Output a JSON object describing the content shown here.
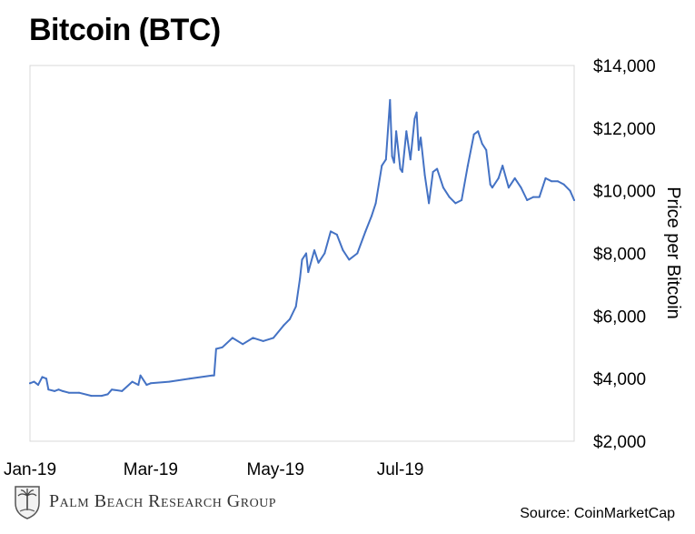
{
  "title": "Bitcoin (BTC)",
  "source": "Source: CoinMarketCap",
  "logo": {
    "text": "Palm Beach Research Group",
    "icon": "palm-tree-crest-icon"
  },
  "colors": {
    "line": "#4472C4",
    "frame": "#D9D9D9"
  },
  "chart_data": {
    "type": "line",
    "title": "Bitcoin (BTC)",
    "ylabel": "Price per Bitcoin",
    "xlabel": "",
    "ylim": [
      2000,
      14000
    ],
    "y_axis_side": "right",
    "y_ticks": [
      "$2,000",
      "$4,000",
      "$6,000",
      "$8,000",
      "$10,000",
      "$12,000",
      "$14,000"
    ],
    "y_tick_values": [
      2000,
      4000,
      6000,
      8000,
      10000,
      12000,
      14000
    ],
    "x_ticks": [
      "Jan-19",
      "Mar-19",
      "May-19",
      "Jul-19"
    ],
    "x_tick_dates": [
      "2019-01-01",
      "2019-03-01",
      "2019-05-01",
      "2019-07-01"
    ],
    "xlim": [
      "2019-01-01",
      "2019-09-24"
    ],
    "grid": false,
    "legend": "none",
    "series": [
      {
        "x": [
          "2019-01-01",
          "2019-01-03",
          "2019-01-05",
          "2019-01-07",
          "2019-01-09",
          "2019-01-10",
          "2019-01-13",
          "2019-01-15",
          "2019-01-17",
          "2019-01-20",
          "2019-01-25",
          "2019-01-31",
          "2019-02-05",
          "2019-02-08",
          "2019-02-10",
          "2019-02-15",
          "2019-02-20",
          "2019-02-23",
          "2019-02-24",
          "2019-02-27",
          "2019-03-01",
          "2019-03-10",
          "2019-03-20",
          "2019-03-31",
          "2019-04-01",
          "2019-04-02",
          "2019-04-05",
          "2019-04-10",
          "2019-04-15",
          "2019-04-20",
          "2019-04-25",
          "2019-04-30",
          "2019-05-05",
          "2019-05-08",
          "2019-05-11",
          "2019-05-13",
          "2019-05-14",
          "2019-05-16",
          "2019-05-17",
          "2019-05-20",
          "2019-05-22",
          "2019-05-25",
          "2019-05-28",
          "2019-05-31",
          "2019-06-03",
          "2019-06-06",
          "2019-06-10",
          "2019-06-14",
          "2019-06-17",
          "2019-06-19",
          "2019-06-22",
          "2019-06-24",
          "2019-06-26",
          "2019-06-27",
          "2019-06-28",
          "2019-06-29",
          "2019-07-01",
          "2019-07-02",
          "2019-07-04",
          "2019-07-06",
          "2019-07-08",
          "2019-07-09",
          "2019-07-10",
          "2019-07-11",
          "2019-07-13",
          "2019-07-15",
          "2019-07-17",
          "2019-07-19",
          "2019-07-22",
          "2019-07-25",
          "2019-07-28",
          "2019-07-31",
          "2019-08-03",
          "2019-08-06",
          "2019-08-08",
          "2019-08-10",
          "2019-08-12",
          "2019-08-14",
          "2019-08-15",
          "2019-08-18",
          "2019-08-20",
          "2019-08-23",
          "2019-08-26",
          "2019-08-29",
          "2019-09-01",
          "2019-09-04",
          "2019-09-07",
          "2019-09-10",
          "2019-09-13",
          "2019-09-16",
          "2019-09-19",
          "2019-09-22",
          "2019-09-24"
        ],
        "y": [
          3850,
          3900,
          3800,
          4050,
          4000,
          3650,
          3600,
          3650,
          3600,
          3550,
          3550,
          3450,
          3450,
          3500,
          3650,
          3600,
          3900,
          3800,
          4100,
          3800,
          3850,
          3900,
          4000,
          4100,
          4100,
          4950,
          5000,
          5300,
          5100,
          5300,
          5200,
          5300,
          5700,
          5900,
          6300,
          7200,
          7800,
          8000,
          7400,
          8100,
          7700,
          8000,
          8700,
          8600,
          8100,
          7800,
          8000,
          8700,
          9200,
          9600,
          10800,
          11000,
          12900,
          11100,
          10900,
          11900,
          10700,
          10600,
          11900,
          11000,
          12300,
          12500,
          11300,
          11700,
          10500,
          9600,
          10600,
          10700,
          10100,
          9800,
          9600,
          9700,
          10800,
          11800,
          11900,
          11500,
          11300,
          10200,
          10100,
          10400,
          10800,
          10100,
          10400,
          10100,
          9700,
          9800,
          9800,
          10400,
          10300,
          10300,
          10200,
          10000,
          9700
        ]
      }
    ]
  }
}
